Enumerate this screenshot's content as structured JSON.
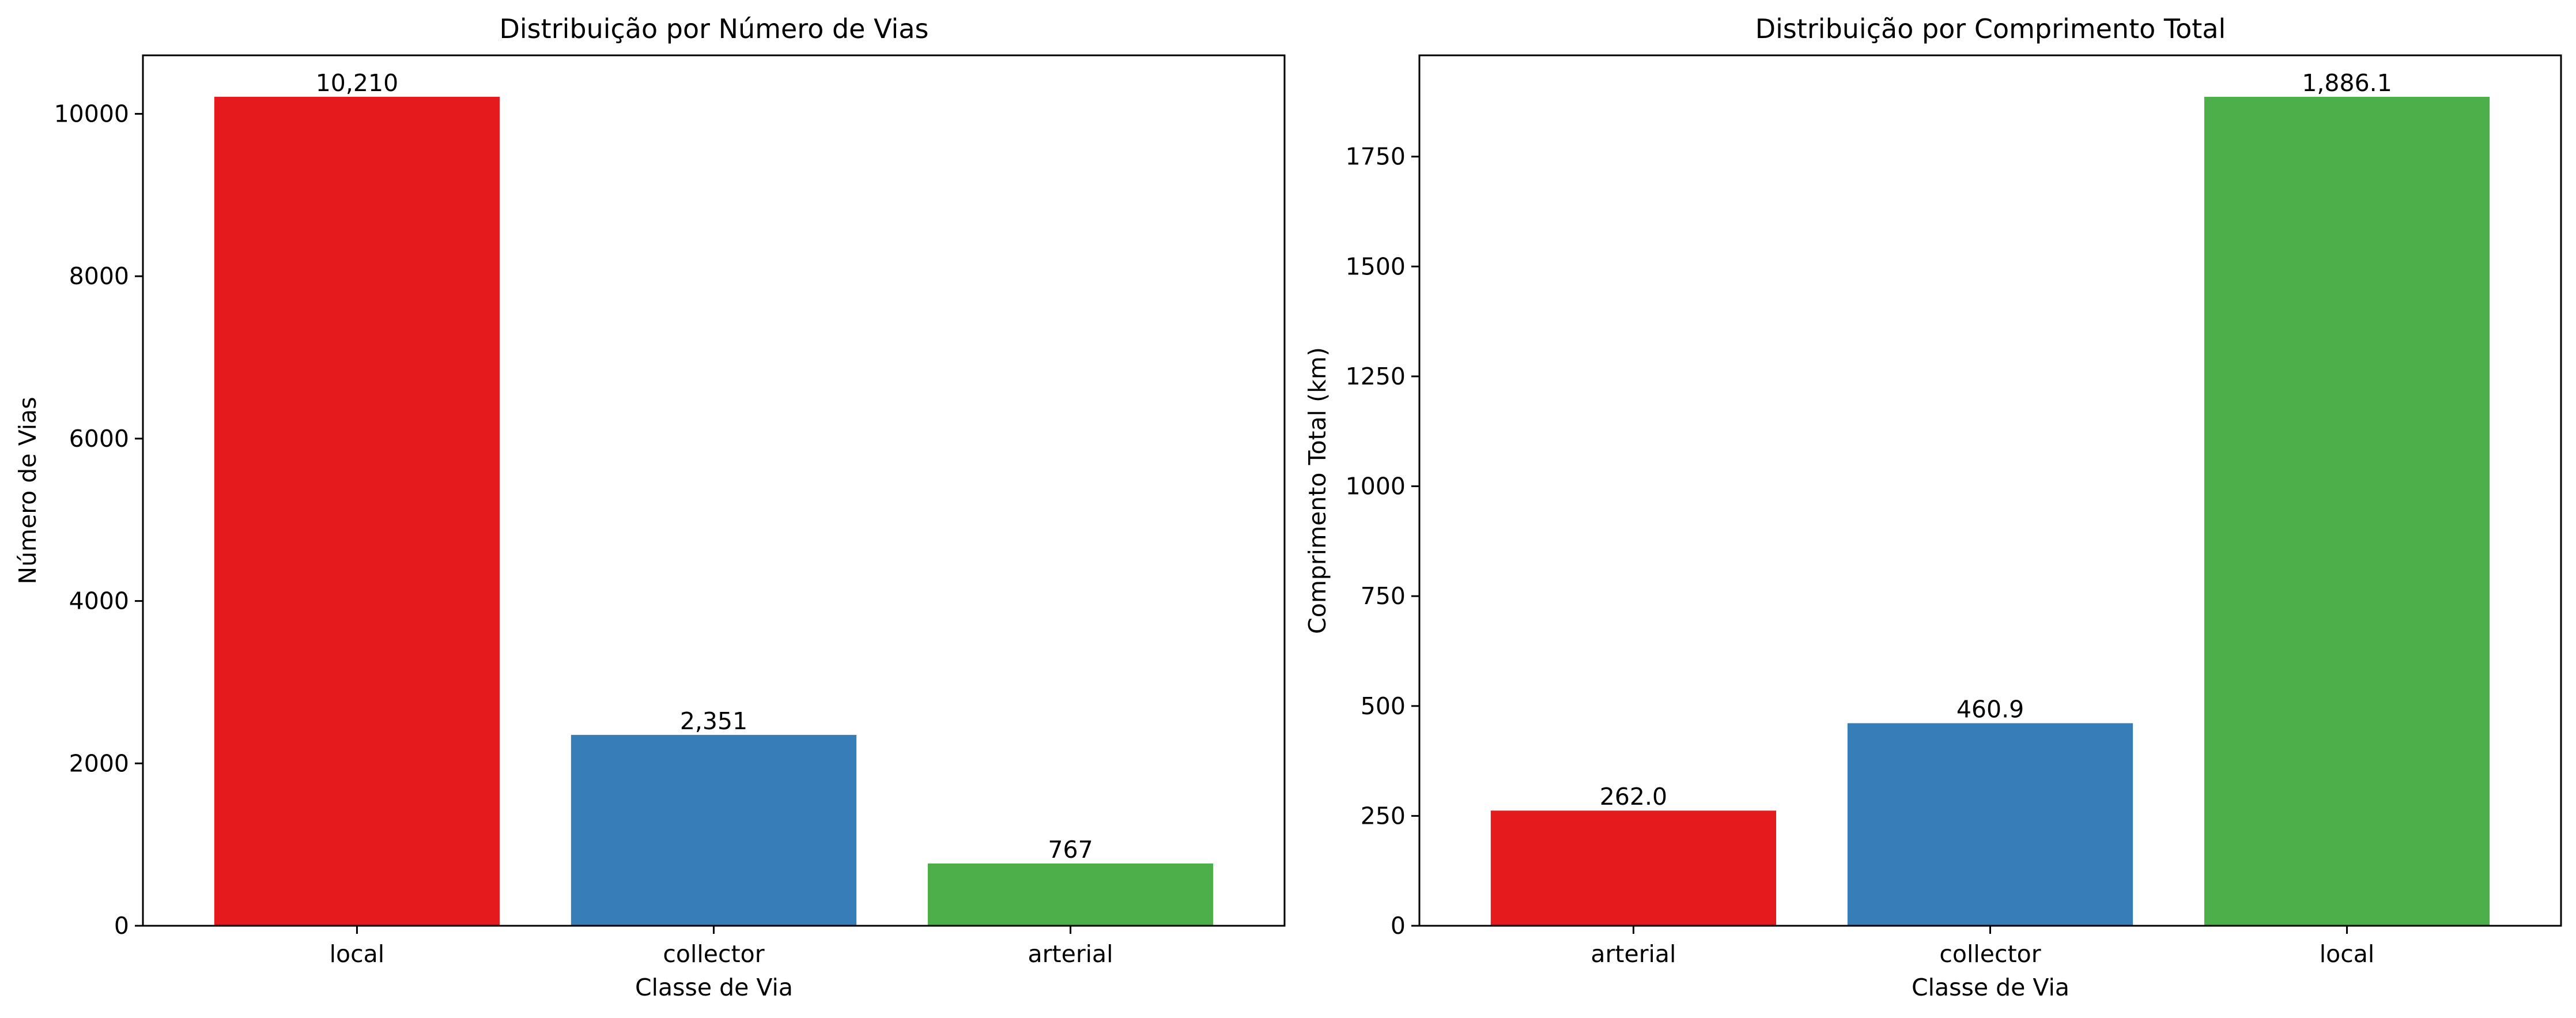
{
  "chart_data": [
    {
      "type": "bar",
      "title": "Distribuição por Número de Vias",
      "xlabel": "Classe de Via",
      "ylabel": "Número de Vias",
      "categories": [
        "local",
        "collector",
        "arterial"
      ],
      "values": [
        10210,
        2351,
        767
      ],
      "value_labels": [
        "10,210",
        "2,351",
        "767"
      ],
      "colors": [
        "#e41a1c",
        "#377eb8",
        "#4daf4a"
      ],
      "ylim": [
        0,
        10720.5
      ],
      "yticks": [
        0,
        2000,
        4000,
        6000,
        8000,
        10000
      ],
      "ytick_labels": [
        "0",
        "2000",
        "4000",
        "6000",
        "8000",
        "10000"
      ],
      "grid": false,
      "legend": "none"
    },
    {
      "type": "bar",
      "title": "Distribuição por Comprimento Total",
      "xlabel": "Classe de Via",
      "ylabel": "Comprimento Total (km)",
      "categories": [
        "arterial",
        "collector",
        "local"
      ],
      "values": [
        262.0,
        460.9,
        1886.1
      ],
      "value_labels": [
        "262.0",
        "460.9",
        "1,886.1"
      ],
      "colors": [
        "#e41a1c",
        "#377eb8",
        "#4daf4a"
      ],
      "ylim": [
        0,
        1980.4
      ],
      "yticks": [
        0,
        250,
        500,
        750,
        1000,
        1250,
        1500,
        1750
      ],
      "ytick_labels": [
        "0",
        "250",
        "500",
        "750",
        "1000",
        "1250",
        "1500",
        "1750"
      ],
      "grid": false,
      "legend": "none"
    }
  ]
}
